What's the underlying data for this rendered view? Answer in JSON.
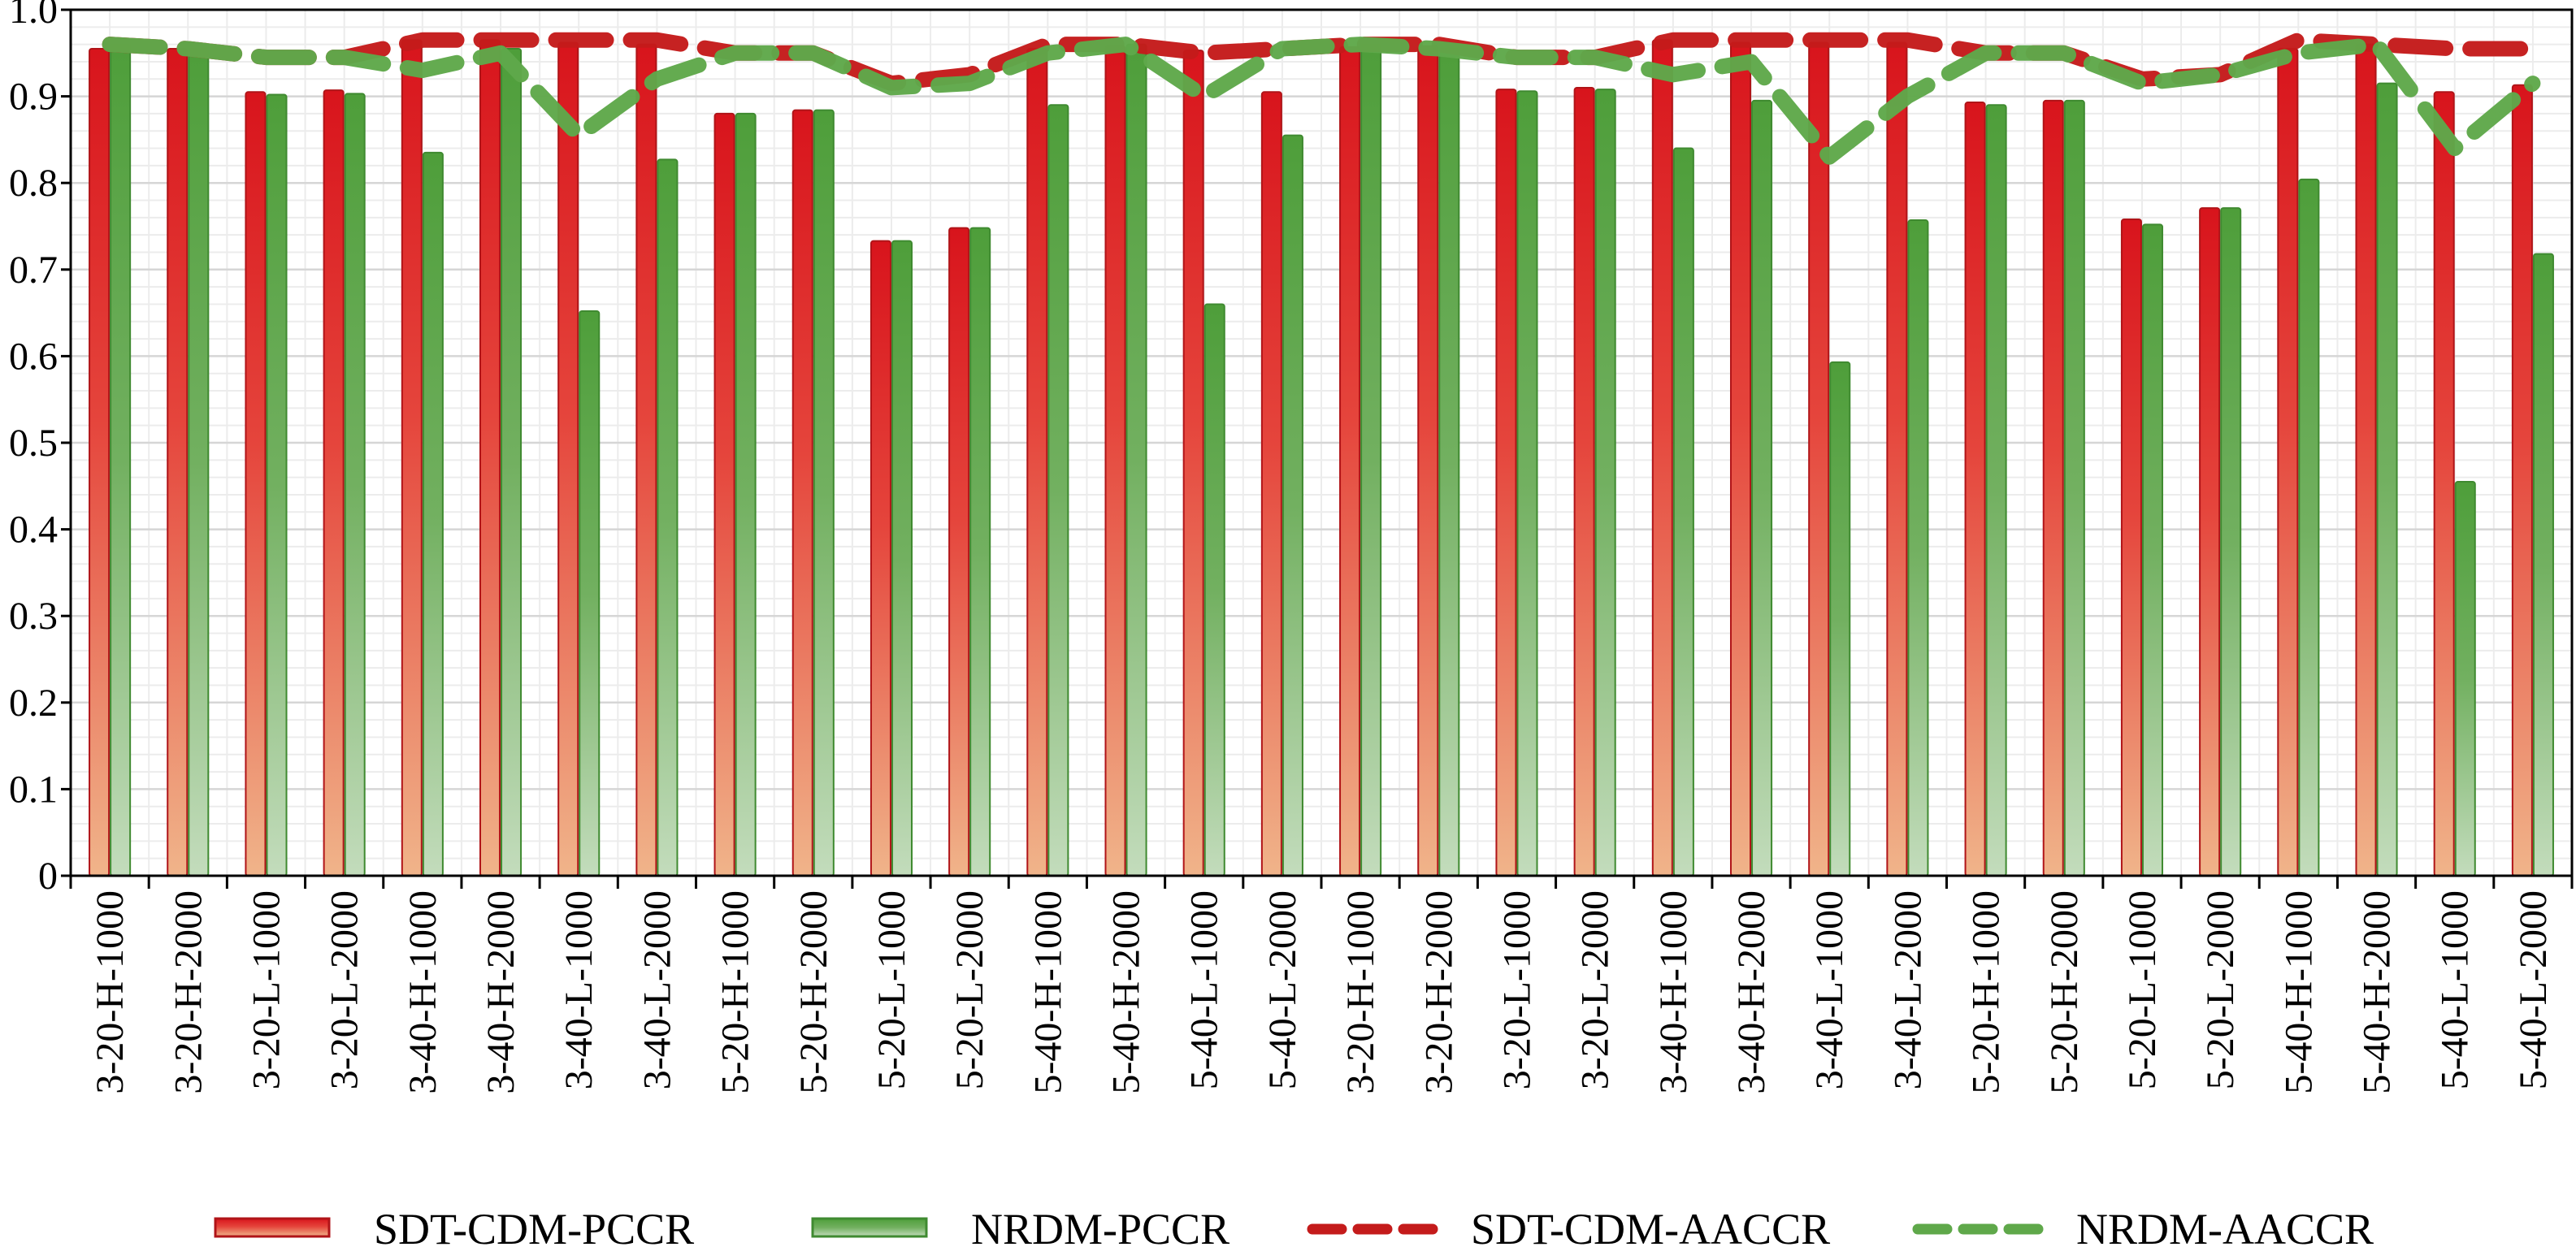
{
  "chart_data": {
    "type": "bar",
    "categories": [
      "3-20-H-1000",
      "3-20-H-2000",
      "3-20-L-1000",
      "3-20-L-2000",
      "3-40-H-1000",
      "3-40-H-2000",
      "3-40-L-1000",
      "3-40-L-2000",
      "5-20-H-1000",
      "5-20-H-2000",
      "5-20-L-1000",
      "5-20-L-2000",
      "5-40-H-1000",
      "5-40-H-2000",
      "5-40-L-1000",
      "5-40-L-2000",
      "3-20-H-1000",
      "3-20-H-2000",
      "3-20-L-1000",
      "3-20-L-2000",
      "3-40-H-1000",
      "3-40-H-2000",
      "3-40-L-1000",
      "3-40-L-2000",
      "5-20-H-1000",
      "5-20-H-2000",
      "5-20-L-1000",
      "5-20-L-2000",
      "5-40-H-1000",
      "5-40-H-2000",
      "5-40-L-1000",
      "5-40-L-2000"
    ],
    "series": [
      {
        "name": "SDT-CDM-PCCR",
        "kind": "bar",
        "color": "#d42a2a",
        "values": [
          0.955,
          0.955,
          0.905,
          0.907,
          0.965,
          0.965,
          0.962,
          0.96,
          0.88,
          0.884,
          0.733,
          0.748,
          0.955,
          0.958,
          0.953,
          0.905,
          0.957,
          0.958,
          0.908,
          0.91,
          0.965,
          0.962,
          0.962,
          0.962,
          0.893,
          0.895,
          0.758,
          0.771,
          0.955,
          0.96,
          0.905,
          0.913
        ]
      },
      {
        "name": "NRDM-PCCR",
        "kind": "bar",
        "color": "#5fa84a",
        "values": [
          0.96,
          0.955,
          0.902,
          0.903,
          0.835,
          0.955,
          0.652,
          0.827,
          0.88,
          0.884,
          0.733,
          0.748,
          0.89,
          0.96,
          0.66,
          0.855,
          0.96,
          0.955,
          0.906,
          0.908,
          0.84,
          0.895,
          0.593,
          0.757,
          0.89,
          0.895,
          0.752,
          0.771,
          0.804,
          0.915,
          0.455,
          0.718
        ]
      },
      {
        "name": "SDT-CDM-AACCR",
        "kind": "line",
        "color": "#c41b1b",
        "values": [
          0.96,
          0.955,
          0.945,
          0.945,
          0.965,
          0.965,
          0.965,
          0.965,
          0.95,
          0.95,
          0.915,
          0.925,
          0.96,
          0.96,
          0.95,
          0.955,
          0.96,
          0.96,
          0.945,
          0.945,
          0.965,
          0.965,
          0.965,
          0.965,
          0.95,
          0.95,
          0.92,
          0.925,
          0.965,
          0.96,
          0.955,
          0.955
        ]
      },
      {
        "name": "NRDM-AACCR",
        "kind": "line",
        "color": "#5fa84a",
        "values": [
          0.96,
          0.955,
          0.945,
          0.945,
          0.93,
          0.95,
          0.855,
          0.92,
          0.95,
          0.95,
          0.91,
          0.915,
          0.95,
          0.96,
          0.9,
          0.955,
          0.96,
          0.955,
          0.945,
          0.945,
          0.925,
          0.94,
          0.83,
          0.9,
          0.95,
          0.95,
          0.915,
          0.925,
          0.95,
          0.96,
          0.84,
          0.915
        ]
      }
    ],
    "yticks": [
      "0",
      "0.1",
      "0.2",
      "0.3",
      "0.4",
      "0.5",
      "0.6",
      "0.7",
      "0.8",
      "0.9",
      "1.0"
    ],
    "ylim": [
      0,
      1.0
    ],
    "grid": true,
    "legend_position": "bottom"
  }
}
